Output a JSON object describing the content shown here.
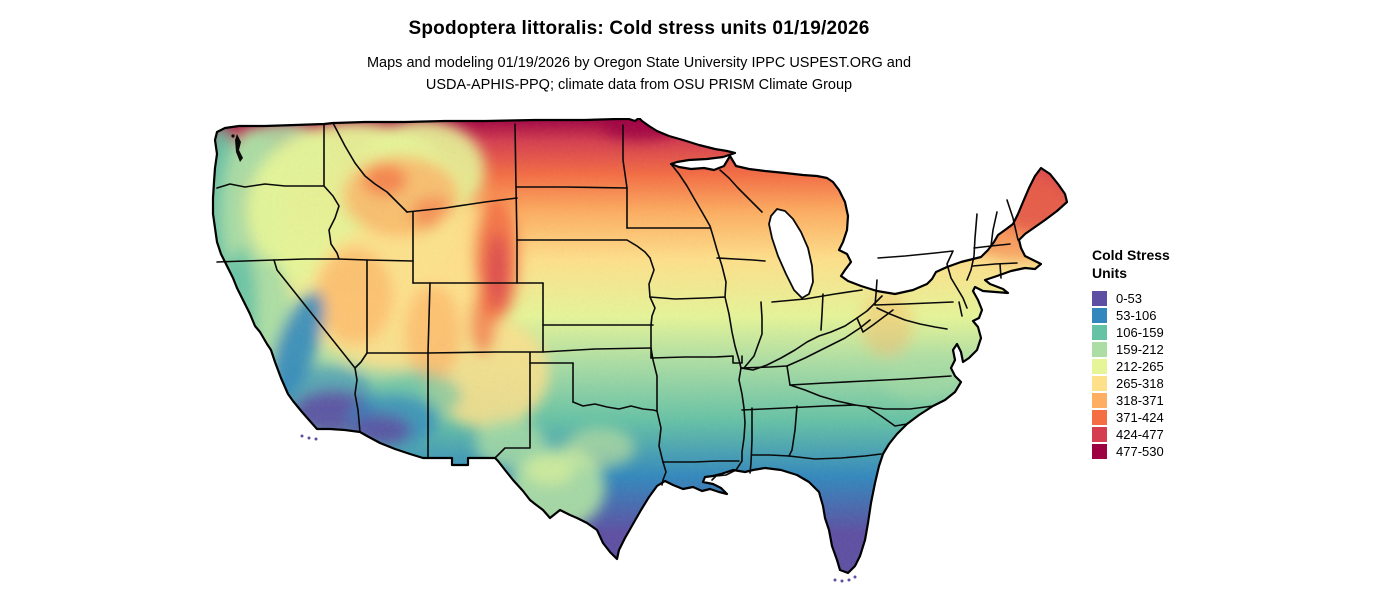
{
  "header": {
    "title": "Spodoptera littoralis: Cold stress units 01/19/2026",
    "subtitle_line1": "Maps and modeling 01/19/2026 by Oregon State University IPPC USPEST.ORG and",
    "subtitle_line2": "USDA-APHIS-PPQ; climate data from OSU PRISM Climate Group"
  },
  "legend": {
    "title_line1": "Cold Stress",
    "title_line2": "Units",
    "items": [
      {
        "label": "0-53",
        "color": "#5e4fa2"
      },
      {
        "label": "53-106",
        "color": "#3288bd"
      },
      {
        "label": "106-159",
        "color": "#66c2a5"
      },
      {
        "label": "159-212",
        "color": "#abdda4"
      },
      {
        "label": "212-265",
        "color": "#e6f598"
      },
      {
        "label": "265-318",
        "color": "#fee08b"
      },
      {
        "label": "318-371",
        "color": "#fdae61"
      },
      {
        "label": "371-424",
        "color": "#f46d43"
      },
      {
        "label": "424-477",
        "color": "#d53e4f"
      },
      {
        "label": "477-530",
        "color": "#9e0142"
      }
    ]
  },
  "chart_data": {
    "type": "heatmap",
    "title": "Spodoptera littoralis: Cold stress units 01/19/2026",
    "legend_title": "Cold Stress Units",
    "region": "contiguous United States",
    "value_range": [
      0,
      530
    ],
    "bins": [
      {
        "range": "0-53",
        "color": "#5e4fa2"
      },
      {
        "range": "53-106",
        "color": "#3288bd"
      },
      {
        "range": "106-159",
        "color": "#66c2a5"
      },
      {
        "range": "159-212",
        "color": "#abdda4"
      },
      {
        "range": "212-265",
        "color": "#e6f598"
      },
      {
        "range": "265-318",
        "color": "#fee08b"
      },
      {
        "range": "318-371",
        "color": "#fdae61"
      },
      {
        "range": "371-424",
        "color": "#f46d43"
      },
      {
        "range": "424-477",
        "color": "#d53e4f"
      },
      {
        "range": "477-530",
        "color": "#9e0142"
      }
    ],
    "pattern_notes": "low values (purple/blue) in south Florida, south Texas, Gulf coast, SW Arizona and coastal/southern California; high values (red/dark red) in northern Minnesota, North Dakota, northern Wisconsin/Michigan, Maine and Rocky Mountain ranges"
  }
}
